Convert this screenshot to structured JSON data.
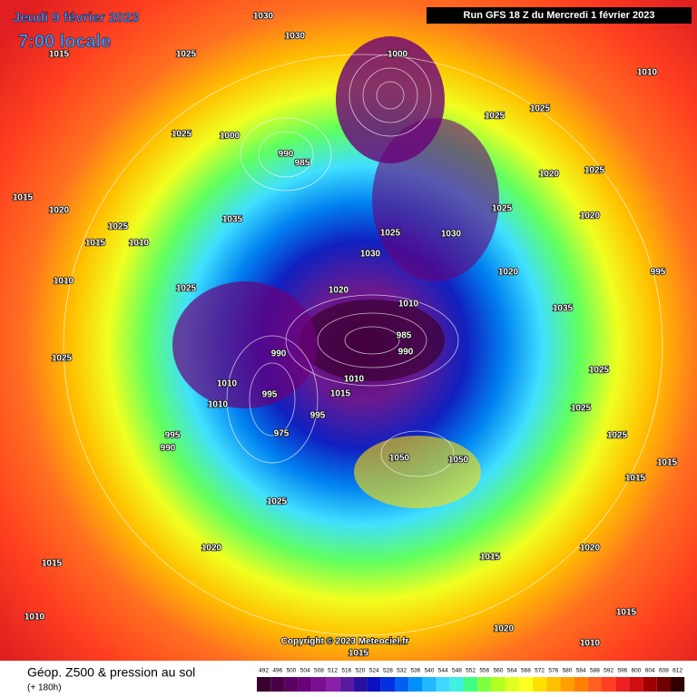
{
  "header": {
    "date": "Jeudi 9 février 2023",
    "time": "7:00 locale",
    "run": "Run GFS 18 Z du Mercredi 1 février 2023"
  },
  "footer": {
    "title": "Géop. Z500 & pression au sol",
    "lead": "(+ 180h)",
    "copyright": "Copyright © 2023 Meteociel.fr"
  },
  "scale": {
    "ticks": [
      492,
      496,
      500,
      504,
      508,
      512,
      516,
      520,
      524,
      528,
      532,
      536,
      540,
      544,
      548,
      552,
      556,
      560,
      564,
      568,
      572,
      576,
      580,
      584,
      588,
      592,
      596,
      600,
      604,
      608,
      612
    ],
    "colors": [
      "#3a0030",
      "#4a0045",
      "#5a0060",
      "#6a007a",
      "#7a1090",
      "#8a20a8",
      "#5a1aa0",
      "#2a10a0",
      "#0a10c0",
      "#0030e0",
      "#0060f0",
      "#0090f8",
      "#20b8ff",
      "#40d8ff",
      "#40f0e0",
      "#40ff80",
      "#80ff40",
      "#b0ff20",
      "#e0ff20",
      "#ffff20",
      "#ffe000",
      "#ffc000",
      "#ffa000",
      "#ff8000",
      "#ff6020",
      "#ff4020",
      "#f02020",
      "#d01010",
      "#a00000",
      "#700000",
      "#300000"
    ]
  },
  "isobar_labels": [
    1030,
    1030,
    1015,
    1025,
    1000,
    1010,
    1025,
    1000,
    990,
    985,
    1025,
    1025,
    1020,
    1025,
    1015,
    1020,
    1035,
    1025,
    1030,
    1025,
    1020,
    1030,
    1025,
    1015,
    1010,
    1010,
    1025,
    1020,
    1020,
    995,
    1010,
    1035,
    985,
    990,
    990,
    1025,
    1010,
    1010,
    1015,
    1010,
    995,
    995,
    975,
    995,
    990,
    1050,
    1050,
    1025,
    1025,
    1025,
    1015,
    1015,
    1025,
    1020,
    1020,
    1015,
    1015,
    1010,
    1020,
    1015,
    1010,
    1015
  ]
}
